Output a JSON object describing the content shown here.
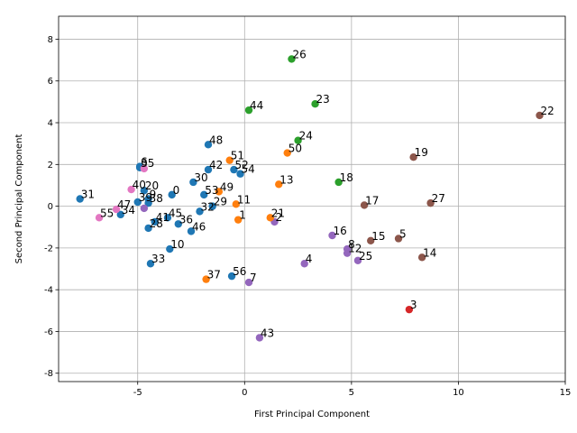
{
  "chart_data": {
    "type": "scatter",
    "xlabel": "First Principal Component",
    "ylabel": "Second Principal Component",
    "xlim": [
      -8.7,
      15
    ],
    "ylim": [
      -8.4,
      9.1
    ],
    "xticks": [
      -5,
      0,
      5,
      10,
      15
    ],
    "yticks": [
      -8,
      -6,
      -4,
      -2,
      0,
      2,
      4,
      6,
      8
    ],
    "grid": true,
    "colors": {
      "blue": "#1f77b4",
      "orange": "#ff7f0e",
      "green": "#2ca02c",
      "red": "#d62728",
      "purple": "#9467bd",
      "brown": "#8c564b",
      "pink": "#e377c2"
    },
    "points": [
      {
        "label": "0",
        "x": -3.4,
        "y": 0.55,
        "color": "blue"
      },
      {
        "label": "1",
        "x": -0.3,
        "y": -0.65,
        "color": "orange"
      },
      {
        "label": "2",
        "x": 1.4,
        "y": -0.75,
        "color": "purple"
      },
      {
        "label": "3",
        "x": 7.7,
        "y": -4.95,
        "color": "red"
      },
      {
        "label": "4",
        "x": 2.8,
        "y": -2.75,
        "color": "purple"
      },
      {
        "label": "5",
        "x": 7.2,
        "y": -1.55,
        "color": "brown"
      },
      {
        "label": "6",
        "x": -4.9,
        "y": 1.9,
        "color": "blue"
      },
      {
        "label": "7",
        "x": 0.2,
        "y": -3.65,
        "color": "purple"
      },
      {
        "label": "8",
        "x": 4.8,
        "y": -2.05,
        "color": "purple"
      },
      {
        "label": "9",
        "x": -4.5,
        "y": 0.35,
        "color": "blue"
      },
      {
        "label": "10",
        "x": -3.5,
        "y": -2.05,
        "color": "blue"
      },
      {
        "label": "11",
        "x": -0.4,
        "y": 0.1,
        "color": "orange"
      },
      {
        "label": "12",
        "x": 4.8,
        "y": -2.25,
        "color": "purple"
      },
      {
        "label": "13",
        "x": 1.6,
        "y": 1.05,
        "color": "orange"
      },
      {
        "label": "14",
        "x": 8.3,
        "y": -2.45,
        "color": "brown"
      },
      {
        "label": "15",
        "x": 5.9,
        "y": -1.65,
        "color": "brown"
      },
      {
        "label": "16",
        "x": 4.1,
        "y": -1.4,
        "color": "purple"
      },
      {
        "label": "17",
        "x": 5.6,
        "y": 0.05,
        "color": "brown"
      },
      {
        "label": "18",
        "x": 4.4,
        "y": 1.15,
        "color": "green"
      },
      {
        "label": "19",
        "x": 7.9,
        "y": 2.35,
        "color": "brown"
      },
      {
        "label": "20",
        "x": -4.7,
        "y": 0.75,
        "color": "blue"
      },
      {
        "label": "21",
        "x": 1.2,
        "y": -0.55,
        "color": "orange"
      },
      {
        "label": "22",
        "x": 13.8,
        "y": 4.35,
        "color": "brown"
      },
      {
        "label": "23",
        "x": 3.3,
        "y": 4.9,
        "color": "green"
      },
      {
        "label": "24",
        "x": 2.5,
        "y": 3.15,
        "color": "green"
      },
      {
        "label": "25",
        "x": 5.3,
        "y": -2.6,
        "color": "purple"
      },
      {
        "label": "26",
        "x": 2.2,
        "y": 7.05,
        "color": "green"
      },
      {
        "label": "27",
        "x": 8.7,
        "y": 0.15,
        "color": "brown"
      },
      {
        "label": "28",
        "x": -4.5,
        "y": -1.05,
        "color": "blue"
      },
      {
        "label": "29",
        "x": -1.5,
        "y": 0.0,
        "color": "blue"
      },
      {
        "label": "30",
        "x": -2.4,
        "y": 1.15,
        "color": "blue"
      },
      {
        "label": "31",
        "x": -7.7,
        "y": 0.35,
        "color": "blue"
      },
      {
        "label": "32",
        "x": -2.1,
        "y": -0.25,
        "color": "blue"
      },
      {
        "label": "33",
        "x": -4.4,
        "y": -2.75,
        "color": "blue"
      },
      {
        "label": "34",
        "x": -5.8,
        "y": -0.4,
        "color": "blue"
      },
      {
        "label": "35",
        "x": -4.9,
        "y": 1.85,
        "color": "blue"
      },
      {
        "label": "36",
        "x": -3.1,
        "y": -0.85,
        "color": "blue"
      },
      {
        "label": "37",
        "x": -1.8,
        "y": -3.5,
        "color": "orange"
      },
      {
        "label": "38",
        "x": -4.5,
        "y": 0.15,
        "color": "blue"
      },
      {
        "label": "39",
        "x": -5.0,
        "y": 0.2,
        "color": "blue"
      },
      {
        "label": "40",
        "x": -5.3,
        "y": 0.8,
        "color": "pink"
      },
      {
        "label": "41",
        "x": -4.2,
        "y": -0.75,
        "color": "blue"
      },
      {
        "label": "42",
        "x": -1.7,
        "y": 1.75,
        "color": "blue"
      },
      {
        "label": "43",
        "x": 0.7,
        "y": -6.3,
        "color": "purple"
      },
      {
        "label": "44",
        "x": 0.2,
        "y": 4.6,
        "color": "green"
      },
      {
        "label": "45",
        "x": -3.6,
        "y": -0.55,
        "color": "blue"
      },
      {
        "label": "46",
        "x": -2.5,
        "y": -1.2,
        "color": "blue"
      },
      {
        "label": "47",
        "x": -6.0,
        "y": -0.15,
        "color": "pink"
      },
      {
        "label": "48",
        "x": -1.7,
        "y": 2.95,
        "color": "blue"
      },
      {
        "label": "49",
        "x": -1.2,
        "y": 0.7,
        "color": "orange"
      },
      {
        "label": "50",
        "x": 2.0,
        "y": 2.55,
        "color": "orange"
      },
      {
        "label": "51",
        "x": -0.7,
        "y": 2.2,
        "color": "orange"
      },
      {
        "label": "52",
        "x": -0.5,
        "y": 1.75,
        "color": "blue"
      },
      {
        "label": "53",
        "x": -1.9,
        "y": 0.55,
        "color": "blue"
      },
      {
        "label": "54",
        "x": -0.2,
        "y": 1.55,
        "color": "blue"
      },
      {
        "label": "55",
        "x": -6.8,
        "y": -0.55,
        "color": "pink"
      },
      {
        "label": "56",
        "x": -0.6,
        "y": -3.35,
        "color": "blue"
      },
      {
        "label": "",
        "x": -4.7,
        "y": 1.8,
        "color": "pink"
      },
      {
        "label": "",
        "x": -4.7,
        "y": -0.1,
        "color": "purple"
      }
    ]
  }
}
